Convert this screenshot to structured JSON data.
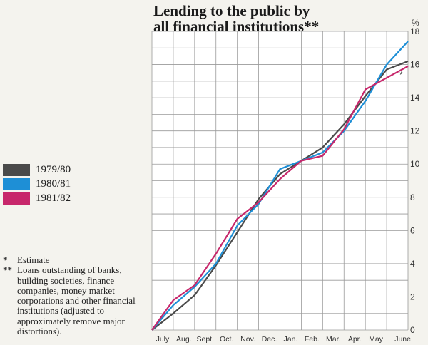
{
  "chart_data": {
    "type": "line",
    "title_lines": [
      "Lending to the public by",
      "all financial institutions**"
    ],
    "unit_label": "%",
    "categories": [
      "",
      "July",
      "Aug.",
      "Sept.",
      "Oct.",
      "Nov.",
      "Dec.",
      "Jan.",
      "Feb.",
      "Mar.",
      "Apr.",
      "May",
      "June"
    ],
    "ylim": [
      0,
      18
    ],
    "yticks": [
      0,
      2,
      4,
      6,
      8,
      10,
      12,
      14,
      16,
      18
    ],
    "grid": true,
    "series": [
      {
        "name": "1979/80",
        "color": "#4a4a4a",
        "values": [
          0,
          1.0,
          2.1,
          3.9,
          5.9,
          7.9,
          9.4,
          10.2,
          11.0,
          12.4,
          14.1,
          15.7,
          16.2
        ]
      },
      {
        "name": "1980/81",
        "color": "#1e8fd6",
        "values": [
          0,
          1.5,
          2.6,
          4.0,
          6.3,
          7.6,
          9.7,
          10.2,
          10.7,
          12.0,
          13.8,
          16.0,
          17.4
        ]
      },
      {
        "name": "1981/82",
        "color": "#c7276b",
        "values": [
          0,
          1.8,
          2.7,
          4.6,
          6.7,
          7.7,
          9.1,
          10.2,
          10.5,
          12.1,
          14.5,
          15.2,
          15.9
        ]
      }
    ],
    "estimate_marker": {
      "series": "1981/82",
      "label": "*"
    }
  },
  "notes": [
    {
      "mark": "*",
      "text": "Estimate"
    },
    {
      "mark": "**",
      "text": "Loans outstanding of banks, building societies, finance companies, money market corporations and other financial institutions (adjusted to approximately remove major distortions)."
    }
  ]
}
